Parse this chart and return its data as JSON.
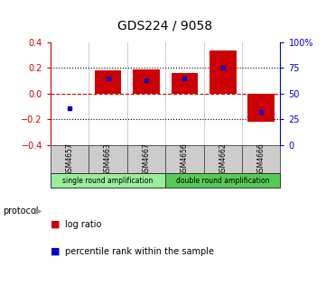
{
  "title": "GDS224 / 9058",
  "samples": [
    "GSM4657",
    "GSM4663",
    "GSM4667",
    "GSM4656",
    "GSM4662",
    "GSM4666"
  ],
  "log_ratio": [
    0.0,
    0.18,
    0.19,
    0.16,
    0.335,
    -0.22
  ],
  "percentile_rank": [
    36,
    65,
    63,
    65,
    75,
    32
  ],
  "ylim_left": [
    -0.4,
    0.4
  ],
  "ylim_right": [
    0,
    100
  ],
  "yticks_left": [
    -0.4,
    -0.2,
    0.0,
    0.2,
    0.4
  ],
  "yticks_right": [
    0,
    25,
    50,
    75,
    100
  ],
  "ytick_labels_right": [
    "0",
    "25",
    "50",
    "75",
    "100%"
  ],
  "dotted_lines": [
    -0.2,
    0.2
  ],
  "zero_line": 0.0,
  "bar_color_red": "#cc0000",
  "bar_color_blue": "#0000cc",
  "protocol_groups": [
    {
      "label": "single round amplification",
      "start": 0,
      "end": 2,
      "color": "#99ee99"
    },
    {
      "label": "double round amplification",
      "start": 3,
      "end": 5,
      "color": "#55cc55"
    }
  ],
  "protocol_label": "protocol",
  "legend_red_label": "log ratio",
  "legend_blue_label": "percentile rank within the sample",
  "bar_width": 0.7,
  "background_color": "#ffffff",
  "plot_bg_color": "#ffffff",
  "tick_color_left": "#cc0000",
  "tick_color_right": "#0000cc",
  "sample_box_color": "#cccccc",
  "sample_box_edge": "#555555"
}
